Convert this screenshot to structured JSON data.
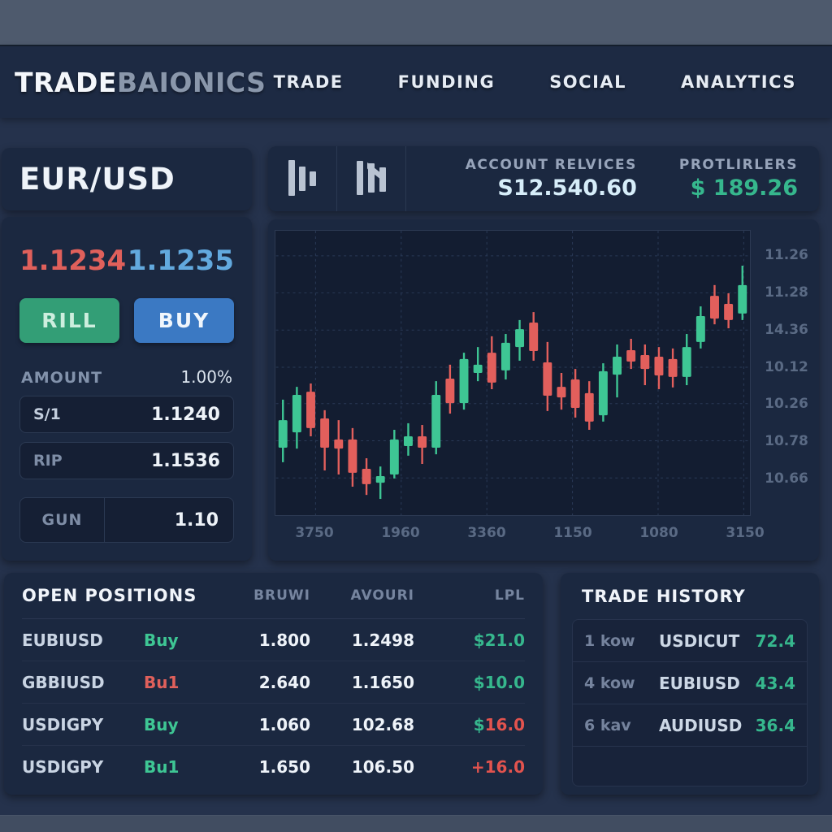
{
  "nav": {
    "logo_primary": "TRADE",
    "logo_secondary": "BAIONICS",
    "items": [
      {
        "label": "TRADE"
      },
      {
        "label": "FUNDING"
      },
      {
        "label": "SOCIAL"
      },
      {
        "label": "ANALYTICS"
      }
    ]
  },
  "symbol_panel": {
    "pair": "EUR/USD"
  },
  "trade_panel": {
    "sell_price": "1.1234",
    "buy_price": "1.1235",
    "sell_button": "RILL",
    "buy_button": "BUY",
    "amount_label": "AMOUNT",
    "amount_value": "1.00%",
    "fields": [
      {
        "label": "S/1",
        "value": "1.1240"
      },
      {
        "label": "RIP",
        "value": "1.1536"
      },
      {
        "label": "GUN",
        "value": "1.10"
      }
    ]
  },
  "account_bar": {
    "icon1": "bar-chart-icon",
    "icon2": "candlestick-icon",
    "balance_label": "ACCOUNT RELVICES",
    "balance_value": "S12.540.60",
    "profit_label": "PROTLIRLERS",
    "profit_value": "$ 189.26"
  },
  "chart_data": {
    "type": "candlestick",
    "title": "",
    "pair": "EUR/USD",
    "grid": true,
    "legend": "none",
    "y_axis_side": "right",
    "y_ticks": [
      "11.26",
      "11.28",
      "14.36",
      "10.12",
      "10.26",
      "10.78",
      "10.66"
    ],
    "x_ticks": [
      "3750",
      "1960",
      "3360",
      "1150",
      "1080",
      "3150"
    ],
    "up_color": "#3ec694",
    "down_color": "#e25f5c",
    "value_scale": "relative 0-100 of plot height (axis labels garbled in source)",
    "candles": [
      {
        "o": 23.7,
        "h": 40.6,
        "l": 18.6,
        "c": 33.4
      },
      {
        "o": 29.1,
        "h": 45.1,
        "l": 23.4,
        "c": 42.3
      },
      {
        "o": 43.4,
        "h": 46.3,
        "l": 27.7,
        "c": 30.6
      },
      {
        "o": 34.0,
        "h": 36.9,
        "l": 15.7,
        "c": 23.7
      },
      {
        "o": 26.6,
        "h": 33.4,
        "l": 14.3,
        "c": 23.4
      },
      {
        "o": 26.6,
        "h": 30.6,
        "l": 10.0,
        "c": 14.9
      },
      {
        "o": 16.3,
        "h": 20.0,
        "l": 7.1,
        "c": 10.9
      },
      {
        "o": 11.4,
        "h": 17.1,
        "l": 5.7,
        "c": 13.7
      },
      {
        "o": 14.3,
        "h": 30.0,
        "l": 12.9,
        "c": 26.6
      },
      {
        "o": 24.3,
        "h": 32.3,
        "l": 20.9,
        "c": 27.7
      },
      {
        "o": 27.7,
        "h": 31.7,
        "l": 18.0,
        "c": 23.7
      },
      {
        "o": 23.7,
        "h": 47.1,
        "l": 21.4,
        "c": 42.3
      },
      {
        "o": 48.0,
        "h": 52.9,
        "l": 35.7,
        "c": 39.4
      },
      {
        "o": 39.4,
        "h": 57.1,
        "l": 37.1,
        "c": 54.9
      },
      {
        "o": 50.0,
        "h": 59.1,
        "l": 47.1,
        "c": 52.9
      },
      {
        "o": 57.1,
        "h": 62.9,
        "l": 44.3,
        "c": 46.6
      },
      {
        "o": 50.9,
        "h": 63.7,
        "l": 47.7,
        "c": 60.6
      },
      {
        "o": 59.1,
        "h": 68.6,
        "l": 54.3,
        "c": 65.4
      },
      {
        "o": 67.7,
        "h": 71.4,
        "l": 54.3,
        "c": 57.7
      },
      {
        "o": 53.7,
        "h": 60.9,
        "l": 36.6,
        "c": 42.0
      },
      {
        "o": 45.1,
        "h": 50.0,
        "l": 37.1,
        "c": 41.4
      },
      {
        "o": 47.7,
        "h": 51.4,
        "l": 34.3,
        "c": 37.7
      },
      {
        "o": 42.9,
        "h": 47.1,
        "l": 30.0,
        "c": 32.9
      },
      {
        "o": 35.1,
        "h": 53.4,
        "l": 32.9,
        "c": 50.6
      },
      {
        "o": 49.4,
        "h": 60.0,
        "l": 41.4,
        "c": 55.7
      },
      {
        "o": 58.0,
        "h": 62.0,
        "l": 51.4,
        "c": 54.0
      },
      {
        "o": 56.3,
        "h": 60.0,
        "l": 45.7,
        "c": 51.4
      },
      {
        "o": 55.7,
        "h": 59.1,
        "l": 44.3,
        "c": 49.1
      },
      {
        "o": 54.9,
        "h": 58.6,
        "l": 44.9,
        "c": 48.6
      },
      {
        "o": 48.6,
        "h": 63.7,
        "l": 45.7,
        "c": 59.1
      },
      {
        "o": 60.9,
        "h": 73.4,
        "l": 58.6,
        "c": 70.0
      },
      {
        "o": 77.1,
        "h": 80.9,
        "l": 67.1,
        "c": 69.1
      },
      {
        "o": 74.3,
        "h": 78.0,
        "l": 65.7,
        "c": 68.6
      },
      {
        "o": 70.9,
        "h": 87.7,
        "l": 68.6,
        "c": 80.9
      }
    ]
  },
  "open_positions": {
    "title": "OPEN POSITIONS",
    "columns": [
      "BRUWI",
      "AVOURI",
      "LPL"
    ],
    "rows": [
      {
        "pair": "EUBIUSD",
        "side": "Buy",
        "side_color": "#3ec694",
        "amount": "1.800",
        "price": "1.2498",
        "pl_prefix": "$",
        "pl_prefix_color": "#36b78d",
        "pl_value": "21.0",
        "pl_color": "#36b78d"
      },
      {
        "pair": "GBBIUSD",
        "side": "Bu1",
        "side_color": "#e0605b",
        "amount": "2.640",
        "price": "1.1650",
        "pl_prefix": "$",
        "pl_prefix_color": "#36b78d",
        "pl_value": "10.0",
        "pl_color": "#36b78d"
      },
      {
        "pair": "USDIGPY",
        "side": "Buy",
        "side_color": "#3ec694",
        "amount": "1.060",
        "price": "102.68",
        "pl_prefix": "$",
        "pl_prefix_color": "#36b78d",
        "pl_value": "16.0",
        "pl_color": "#e2534e"
      },
      {
        "pair": "USDIGPY",
        "side": "Bu1",
        "side_color": "#3ec694",
        "amount": "1.650",
        "price": "106.50",
        "pl_prefix": "+",
        "pl_prefix_color": "#e2534e",
        "pl_value": "16.0",
        "pl_color": "#e2534e"
      }
    ]
  },
  "trade_history": {
    "title": "TRADE HISTORY",
    "rows": [
      {
        "time": "1 kow",
        "pair": "USDICUT",
        "value": "72.4"
      },
      {
        "time": "4 kow",
        "pair": "EUBIUSD",
        "value": "43.4"
      },
      {
        "time": "6 kav",
        "pair": "AUDIUSD",
        "value": "36.4"
      }
    ]
  },
  "colors": {
    "accent_green": "#3ec694",
    "accent_red": "#e25f5c",
    "buy_blue": "#3b79c3",
    "sell_green": "#339e76",
    "panel_bg": "#1b2840",
    "page_bg": "#25324c"
  }
}
